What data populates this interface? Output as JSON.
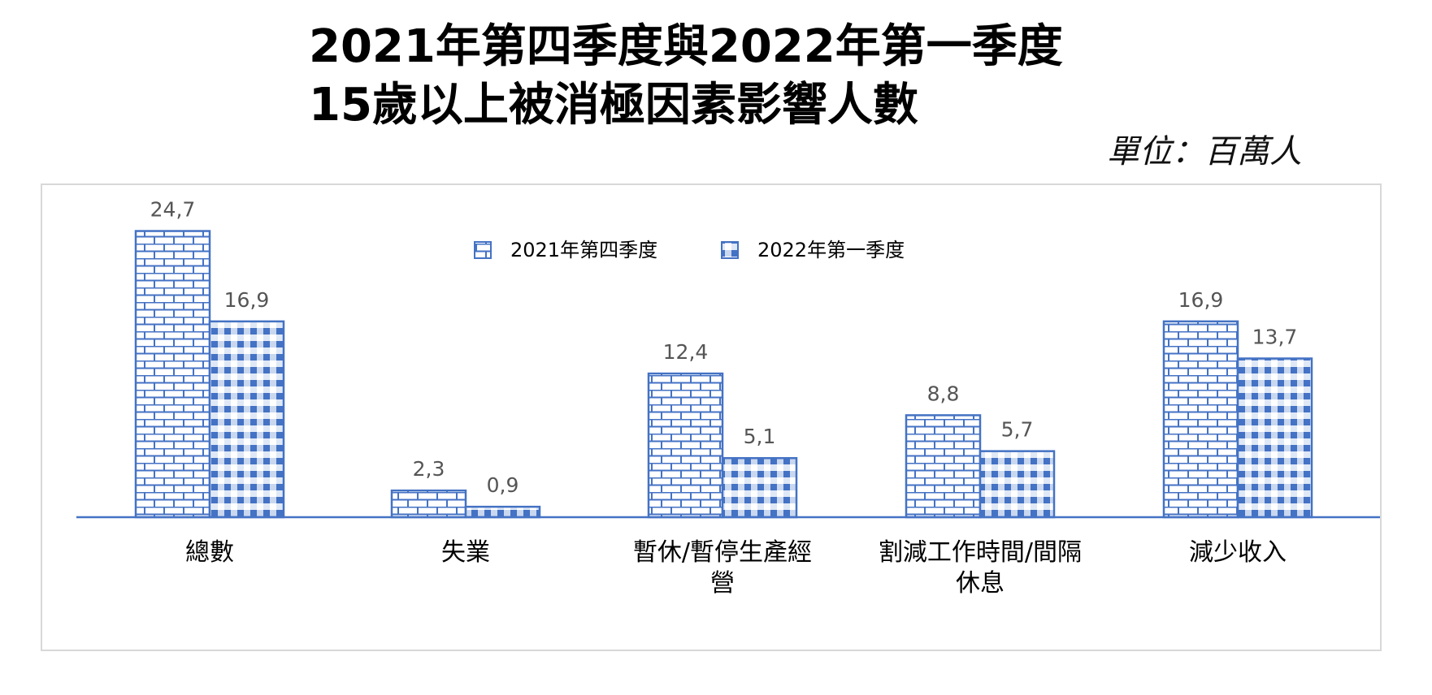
{
  "title": {
    "line1": "2021年第四季度與2022年第一季度",
    "line2": "15歲以上被消極因素影響人數"
  },
  "unit_label": "單位：百萬人",
  "colors": {
    "bar": "#4472c4",
    "axis": "#4472c4",
    "frame": "#d8d8d8"
  },
  "chart_data": {
    "type": "bar",
    "title": "2021年第四季度與2022年第一季度 15歲以上被消極因素影響人數",
    "ylabel": "單位：百萬人",
    "ylim": [
      0,
      26
    ],
    "grid": false,
    "legend_position": "top-center",
    "categories": [
      [
        "總數"
      ],
      [
        "失業"
      ],
      [
        "暫休/暫停生產經",
        "營"
      ],
      [
        "割減工作時間/間隔",
        "休息"
      ],
      [
        "減少收入"
      ]
    ],
    "series": [
      {
        "name": "2021年第四季度",
        "pattern": "brick",
        "values": [
          24.7,
          2.3,
          12.4,
          8.8,
          16.9
        ],
        "labels": [
          "24,7",
          "2,3",
          "12,4",
          "8,8",
          "16,9"
        ]
      },
      {
        "name": "2022年第一季度",
        "pattern": "checker",
        "values": [
          16.9,
          0.9,
          5.1,
          5.7,
          13.7
        ],
        "labels": [
          "16,9",
          "0,9",
          "5,1",
          "5,7",
          "13,7"
        ]
      }
    ]
  }
}
